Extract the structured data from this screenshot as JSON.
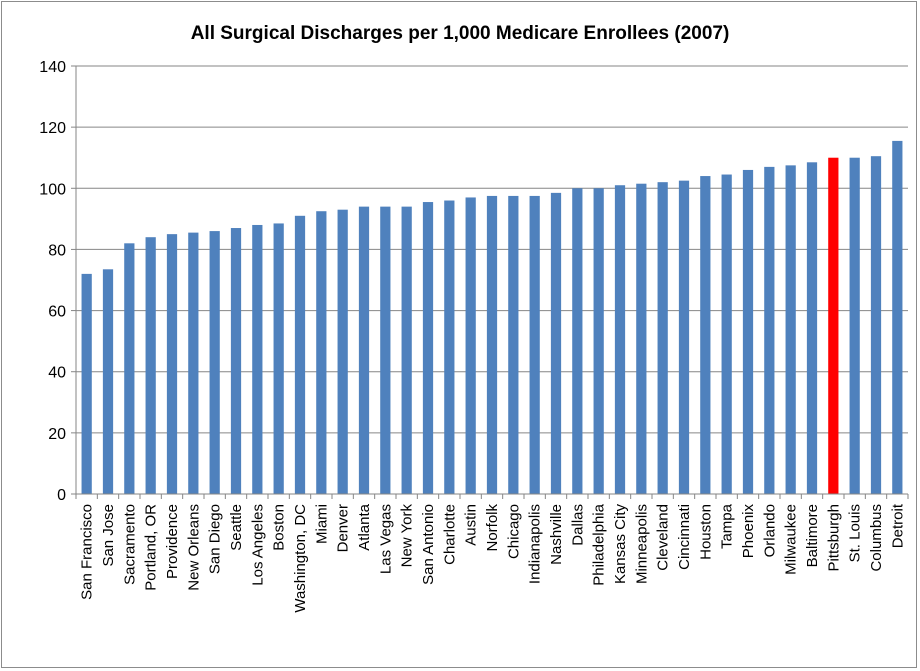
{
  "chart_data": {
    "type": "bar",
    "title": "All Surgical Discharges per 1,000 Medicare Enrollees (2007)",
    "xlabel": "",
    "ylabel": "",
    "ylim": [
      0,
      140
    ],
    "yticks": [
      0,
      20,
      40,
      60,
      80,
      100,
      120,
      140
    ],
    "grid": true,
    "legend": "none",
    "categories": [
      "San Francisco",
      "San Jose",
      "Sacramento",
      "Portland, OR",
      "Providence",
      "New Orleans",
      "San Diego",
      "Seattle",
      "Los Angeles",
      "Boston",
      "Washington, DC",
      "Miami",
      "Denver",
      "Atlanta",
      "Las Vegas",
      "New York",
      "San Antonio",
      "Charlotte",
      "Austin",
      "Norfolk",
      "Chicago",
      "Indianapolis",
      "Nashville",
      "Dallas",
      "Philadelphia",
      "Kansas City",
      "Minneapolis",
      "Cleveland",
      "Cincinnati",
      "Houston",
      "Tampa",
      "Phoenix",
      "Orlando",
      "Milwaukee",
      "Baltimore",
      "Pittsburgh",
      "St. Louis",
      "Columbus",
      "Detroit"
    ],
    "values": [
      72,
      73.5,
      82,
      84,
      85,
      85.5,
      86,
      87,
      88,
      88.5,
      91,
      92.5,
      93,
      94,
      94,
      94,
      95.5,
      96,
      97,
      97.5,
      97.5,
      97.5,
      98.5,
      100,
      100,
      101,
      101.5,
      102,
      102.5,
      104,
      104.5,
      106,
      107,
      107.5,
      108.5,
      110,
      110,
      110.5,
      115.5
    ],
    "highlight_category": "Pittsburgh",
    "colors": {
      "bar": "#4f81bd",
      "highlight": "#ff0000",
      "grid": "#868686",
      "axis": "#868686"
    }
  }
}
